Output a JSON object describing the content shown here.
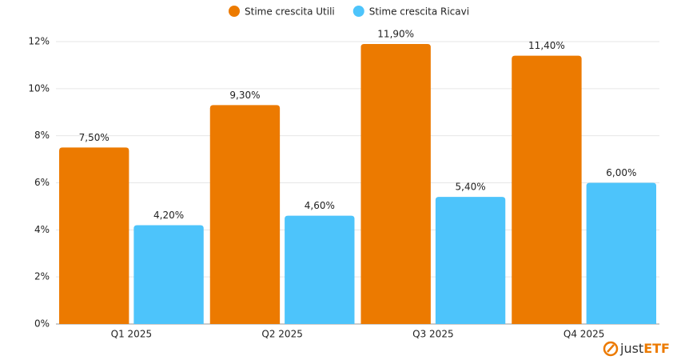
{
  "chart_data": {
    "type": "bar",
    "categories": [
      "Q1 2025",
      "Q2 2025",
      "Q3 2025",
      "Q4 2025"
    ],
    "series": [
      {
        "name": "Stime crescita Utili",
        "color": "#ec7a00",
        "values": [
          7.5,
          9.3,
          11.9,
          11.4
        ],
        "value_labels": [
          "7,50%",
          "9,30%",
          "11,90%",
          "11,40%"
        ]
      },
      {
        "name": "Stime crescita Ricavi",
        "color": "#4dc4fb",
        "values": [
          4.2,
          4.6,
          5.4,
          6.0
        ],
        "value_labels": [
          "4,20%",
          "4,60%",
          "5,40%",
          "6,00%"
        ]
      }
    ],
    "ylim": [
      0,
      12
    ],
    "yticks": [
      {
        "value": 0,
        "label": "0%"
      },
      {
        "value": 2,
        "label": "2%"
      },
      {
        "value": 4,
        "label": "4%"
      },
      {
        "value": 6,
        "label": "6%"
      },
      {
        "value": 8,
        "label": "8%"
      },
      {
        "value": 10,
        "label": "10%"
      },
      {
        "value": 12,
        "label": "12%"
      }
    ],
    "grid": true,
    "legend": "top",
    "watermark": [
      "just",
      "ETF"
    ]
  }
}
